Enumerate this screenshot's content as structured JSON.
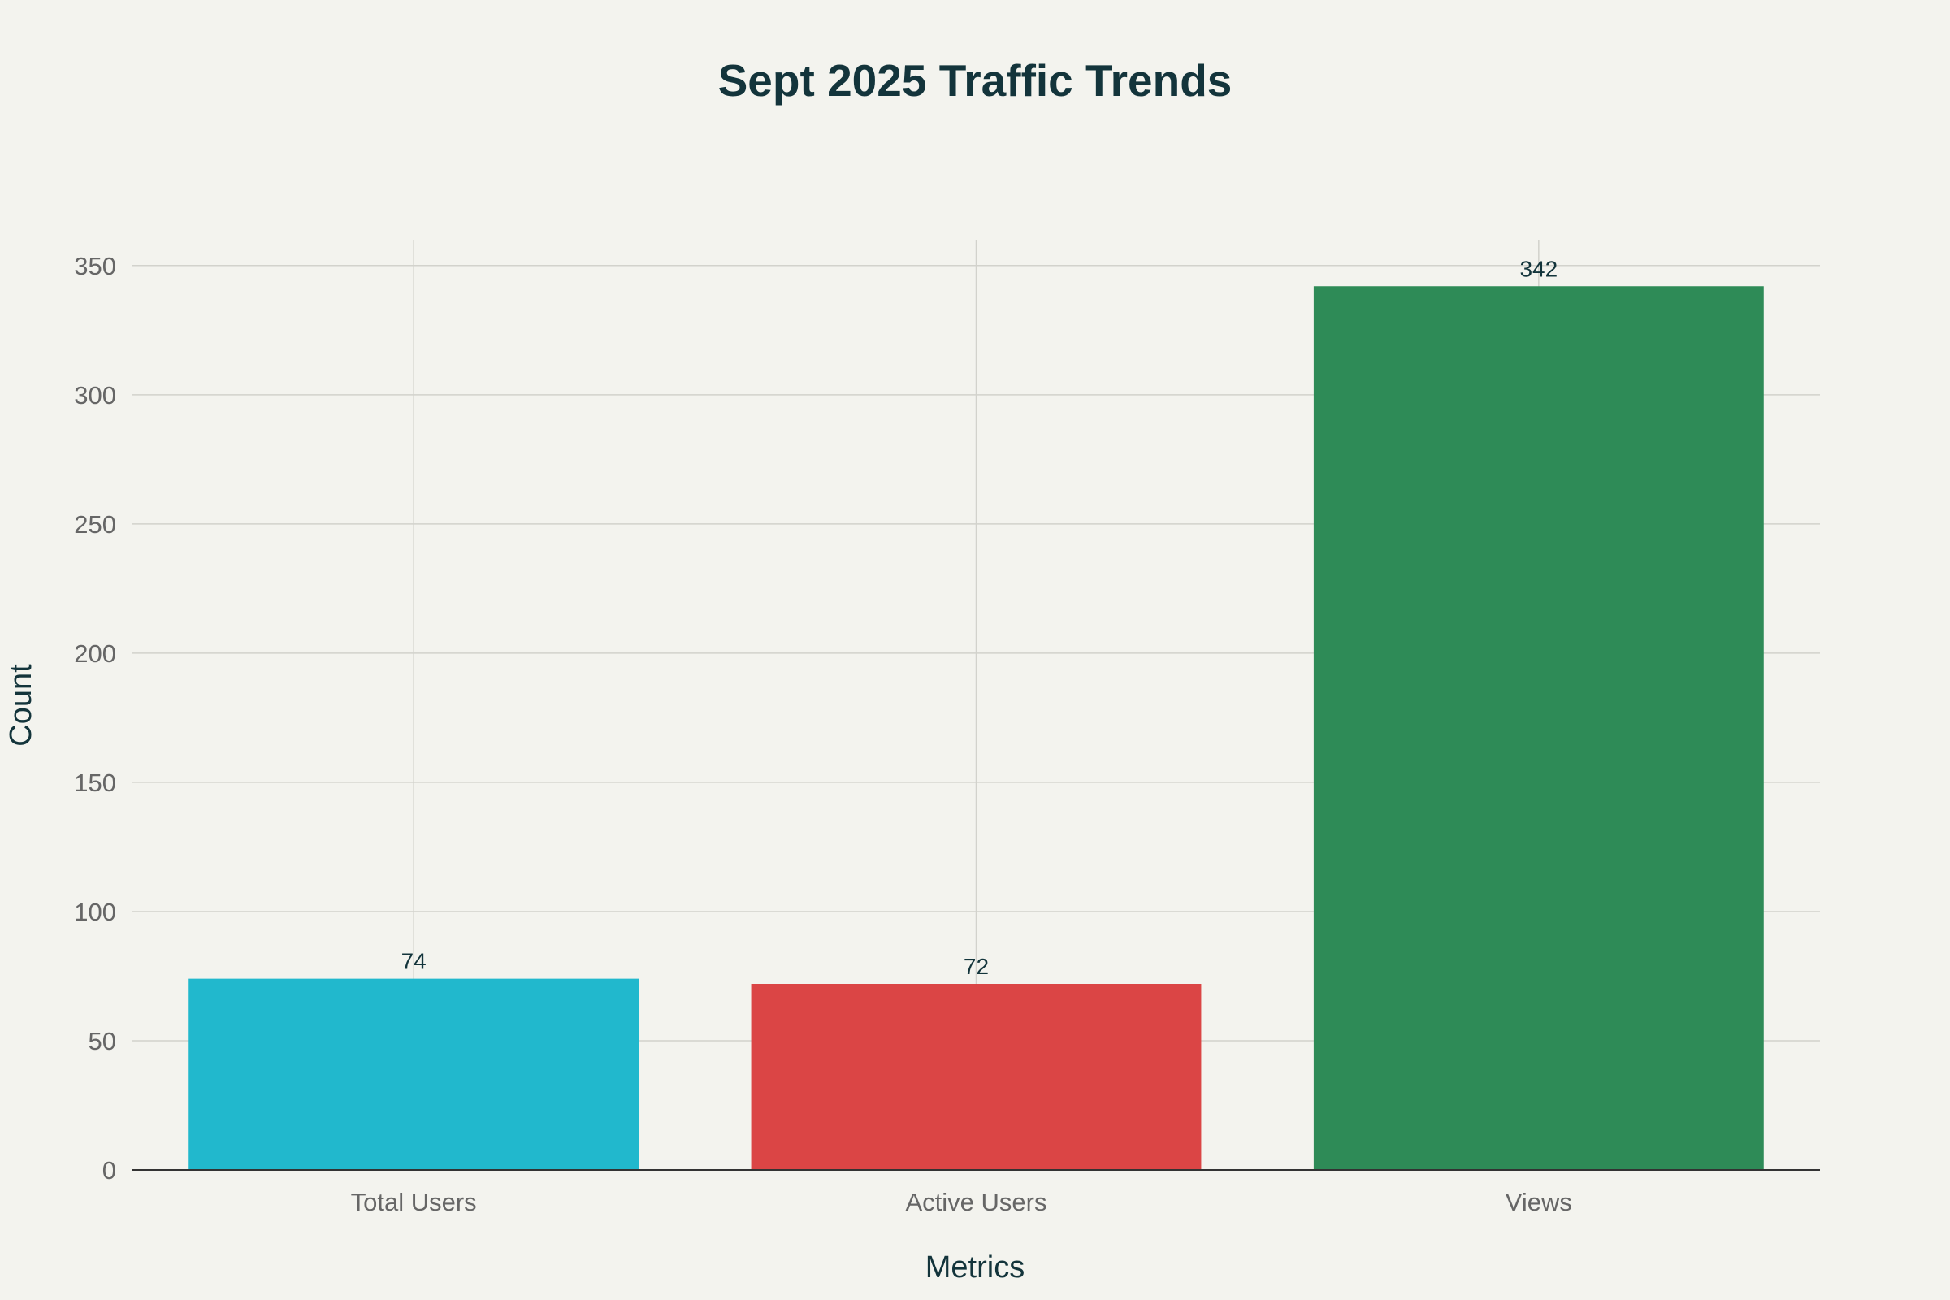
{
  "chart_data": {
    "type": "bar",
    "title": "Sept 2025 Traffic Trends",
    "xlabel": "Metrics",
    "ylabel": "Count",
    "categories": [
      "Total Users",
      "Active Users",
      "Views"
    ],
    "values": [
      74,
      72,
      342
    ],
    "data_labels": [
      "74",
      "72",
      "342"
    ],
    "colors": [
      "#21b8cd",
      "#db4545",
      "#2e8b57"
    ],
    "ylim": [
      0,
      360
    ],
    "yticks": [
      0,
      50,
      100,
      150,
      200,
      250,
      300,
      350
    ],
    "grid": true,
    "legend": "none"
  }
}
